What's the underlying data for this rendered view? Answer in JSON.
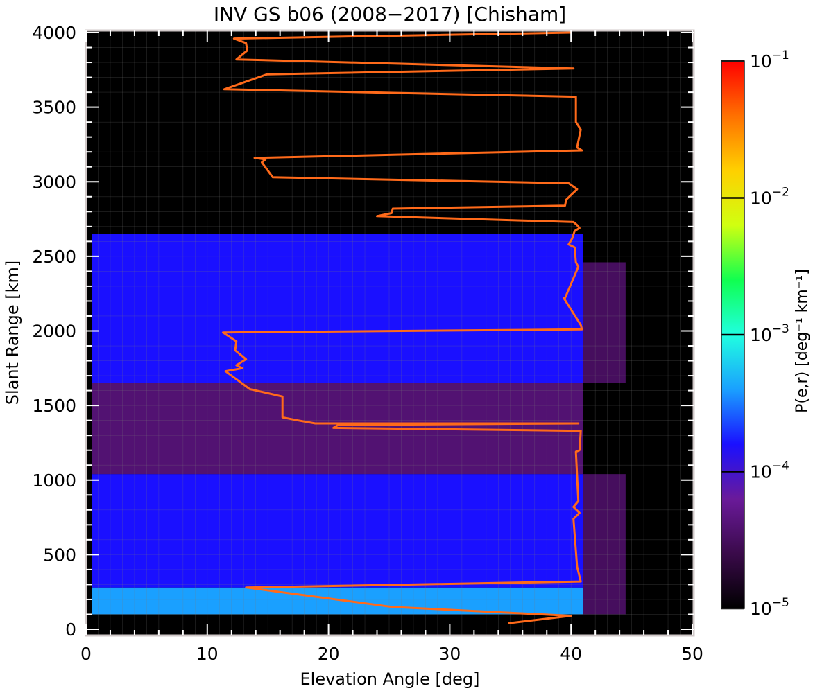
{
  "chart_data": {
    "type": "heatmap",
    "title": "INV GS b06 (2008−2017) [Chisham]",
    "xlabel": "Elevation Angle [deg]",
    "ylabel": "Slant Range [km]",
    "xlim": [
      0,
      50
    ],
    "ylim": [
      0,
      4000
    ],
    "x_ticks": [
      "0",
      "10",
      "20",
      "30",
      "40",
      "50"
    ],
    "y_ticks": [
      "0",
      "500",
      "1000",
      "1500",
      "2000",
      "2500",
      "3000",
      "3500",
      "4000"
    ],
    "grid": true,
    "colorbar": {
      "label": "P(e,r) [deg⁻¹ km⁻¹]",
      "scale": "log",
      "range": [
        1e-05,
        0.1
      ],
      "ticks": [
        {
          "value": 1e-05,
          "base": "10",
          "exp": "−5"
        },
        {
          "value": 0.0001,
          "base": "10",
          "exp": "−4"
        },
        {
          "value": 0.001,
          "base": "10",
          "exp": "−3"
        },
        {
          "value": 0.01,
          "base": "10",
          "exp": "−2"
        },
        {
          "value": 0.1,
          "base": "10",
          "exp": "−1"
        }
      ],
      "colors": [
        "#000000",
        "#3a0a4a",
        "#6a1a9a",
        "#1a10ff",
        "#1aa0ff",
        "#20ffe0",
        "#10ff50",
        "#d0ff10",
        "#ffd000",
        "#ff7000",
        "#ff0000"
      ]
    },
    "heatmap_regions": [
      {
        "x": [
          0.5,
          41
        ],
        "y": [
          100,
          280
        ],
        "log10_value": -3.4
      },
      {
        "x": [
          0.5,
          41
        ],
        "y": [
          280,
          1040
        ],
        "log10_value": -3.8
      },
      {
        "x": [
          0.5,
          41
        ],
        "y": [
          1040,
          1650
        ],
        "log10_value": -4.4
      },
      {
        "x": [
          0.5,
          41
        ],
        "y": [
          1650,
          2650
        ],
        "log10_value": -3.8
      },
      {
        "x": [
          41,
          44.5
        ],
        "y": [
          100,
          1040
        ],
        "log10_value": -4.5
      },
      {
        "x": [
          41,
          44.5
        ],
        "y": [
          1650,
          2460
        ],
        "log10_value": -4.5
      }
    ],
    "series": [
      {
        "color": "#ff6a1a",
        "x": [
          34.8,
          40,
          25.2,
          13.2,
          40.8,
          40.5,
          40.2,
          40.7,
          40.2,
          40.6,
          40.4,
          40.7,
          40.8,
          20.4,
          20.8,
          40.6,
          18.9,
          17.5,
          16.2,
          16.2,
          14.6,
          13.5,
          11.5,
          12.9,
          12.4,
          13.2,
          12.3,
          12.4,
          11.3,
          40.9,
          40.8,
          39.4,
          39.5,
          40.6,
          40.4,
          40.3,
          39.8,
          40.1,
          40.3,
          40.7,
          40.5,
          40.2,
          24,
          25.2,
          25.3,
          39.5,
          39.6,
          40.5,
          39.8,
          15.4,
          14.5,
          14.8,
          13.9,
          40.9,
          40.5,
          40.8,
          40.4,
          40.4,
          11.4,
          13.5,
          14.9,
          40.2,
          12.4,
          13.3,
          13.2,
          12.2,
          40
        ]
      }
    ]
  }
}
